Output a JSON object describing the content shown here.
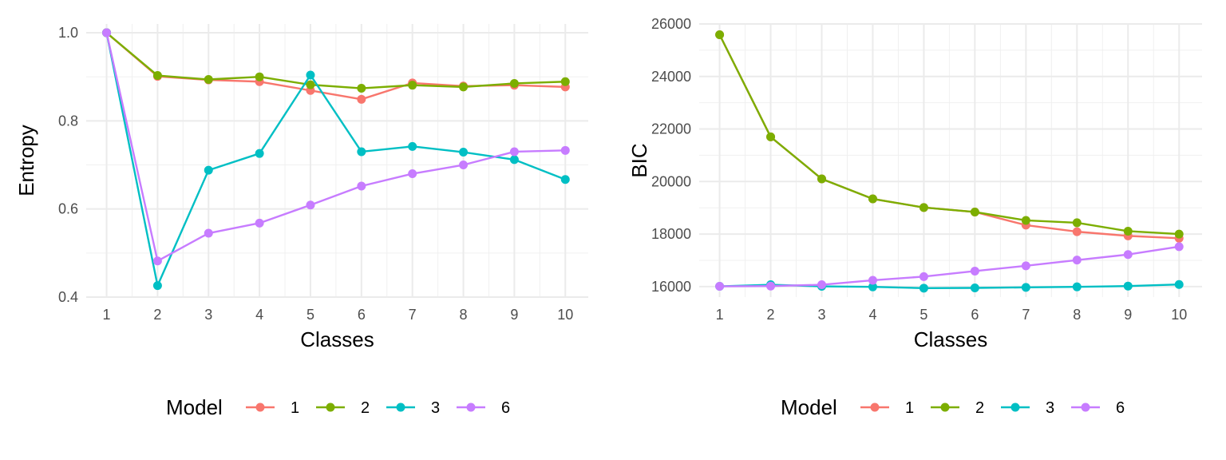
{
  "legend": {
    "title": "Model",
    "entries": [
      {
        "label": "1",
        "color": "#F8766D"
      },
      {
        "label": "2",
        "color": "#7CAE00"
      },
      {
        "label": "3",
        "color": "#00BFC4"
      },
      {
        "label": "6",
        "color": "#C77CFF"
      }
    ]
  },
  "chart_data": [
    {
      "type": "line",
      "xlabel": "Classes",
      "ylabel": "Entropy",
      "x": [
        1,
        2,
        3,
        4,
        5,
        6,
        7,
        8,
        9,
        10
      ],
      "xlim": [
        0.6,
        10.45
      ],
      "ylim": [
        0.4,
        1.02
      ],
      "yticks": [
        0.4,
        0.6,
        0.8,
        1.0
      ],
      "ytick_labels": [
        "0.4",
        "0.6",
        "0.8",
        "1.0"
      ],
      "grid": true,
      "legend_position": "bottom",
      "series": [
        {
          "name": "1",
          "color": "#F8766D",
          "values": [
            1.0,
            0.901,
            0.893,
            0.889,
            0.869,
            0.849,
            0.886,
            0.879,
            0.881,
            0.877
          ]
        },
        {
          "name": "2",
          "color": "#7CAE00",
          "values": [
            1.0,
            0.903,
            0.894,
            0.9,
            0.882,
            0.874,
            0.881,
            0.877,
            0.885,
            0.889
          ]
        },
        {
          "name": "3",
          "color": "#00BFC4",
          "values": [
            1.0,
            0.426,
            0.688,
            0.726,
            0.904,
            0.73,
            0.742,
            0.729,
            0.712,
            0.667
          ]
        },
        {
          "name": "6",
          "color": "#C77CFF",
          "values": [
            1.0,
            0.482,
            0.545,
            0.568,
            0.609,
            0.652,
            0.68,
            0.7,
            0.73,
            0.733
          ]
        }
      ]
    },
    {
      "type": "line",
      "xlabel": "Classes",
      "ylabel": "BIC",
      "x": [
        1,
        2,
        3,
        4,
        5,
        6,
        7,
        8,
        9,
        10
      ],
      "xlim": [
        0.6,
        10.45
      ],
      "ylim": [
        15600,
        26000
      ],
      "yticks": [
        16000,
        18000,
        20000,
        22000,
        24000,
        26000
      ],
      "ytick_labels": [
        "16000",
        "18000",
        "20000",
        "22000",
        "24000",
        "26000"
      ],
      "grid": true,
      "legend_position": "bottom",
      "series": [
        {
          "name": "1",
          "color": "#F8766D",
          "values": [
            25590,
            21700,
            20100,
            19340,
            19010,
            18840,
            18340,
            18090,
            17930,
            17840
          ]
        },
        {
          "name": "2",
          "color": "#7CAE00",
          "values": [
            25590,
            21700,
            20100,
            19340,
            19010,
            18840,
            18520,
            18430,
            18110,
            18000
          ]
        },
        {
          "name": "3",
          "color": "#00BFC4",
          "values": [
            16010,
            16070,
            16010,
            15990,
            15940,
            15950,
            15970,
            15990,
            16020,
            16080
          ]
        },
        {
          "name": "6",
          "color": "#C77CFF",
          "values": [
            16010,
            16020,
            16070,
            16240,
            16380,
            16590,
            16790,
            17010,
            17220,
            17520
          ]
        }
      ]
    }
  ]
}
